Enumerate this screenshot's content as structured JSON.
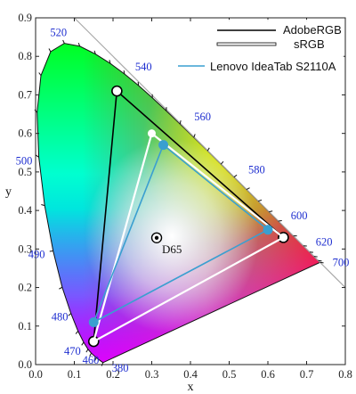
{
  "chart_data": {
    "type": "scatter",
    "subtype": "CIE 1931 chromaticity diagram",
    "xlabel": "x",
    "ylabel": "y",
    "xlim": [
      0.0,
      0.8
    ],
    "ylim": [
      0.0,
      0.9
    ],
    "x_ticks": [
      "0.0",
      "0.1",
      "0.2",
      "0.3",
      "0.4",
      "0.5",
      "0.6",
      "0.7",
      "0.8"
    ],
    "y_ticks": [
      "0.0",
      "0.1",
      "0.2",
      "0.3",
      "0.4",
      "0.5",
      "0.6",
      "0.7",
      "0.8",
      "0.9"
    ],
    "grid": false,
    "legend": {
      "position": "top-right",
      "entries": [
        "AdobeRGB",
        "sRGB",
        "Lenovo IdeaTab S2110A"
      ]
    },
    "spectral_locus": {
      "points": [
        {
          "wl": "380",
          "x": 0.1741,
          "y": 0.005
        },
        {
          "wl": "450",
          "x": 0.1566,
          "y": 0.0177
        },
        {
          "wl": "460",
          "x": 0.144,
          "y": 0.0297
        },
        {
          "wl": "465",
          "x": 0.1355,
          "y": 0.0399
        },
        {
          "wl": "470",
          "x": 0.1241,
          "y": 0.0578
        },
        {
          "wl": "475",
          "x": 0.1096,
          "y": 0.0868
        },
        {
          "wl": "480",
          "x": 0.0913,
          "y": 0.1327
        },
        {
          "wl": "485",
          "x": 0.0687,
          "y": 0.2007
        },
        {
          "wl": "490",
          "x": 0.0454,
          "y": 0.295
        },
        {
          "wl": "495",
          "x": 0.0235,
          "y": 0.4127
        },
        {
          "wl": "500",
          "x": 0.0082,
          "y": 0.5384
        },
        {
          "wl": "505",
          "x": 0.0039,
          "y": 0.6548
        },
        {
          "wl": "510",
          "x": 0.0139,
          "y": 0.7502
        },
        {
          "wl": "515",
          "x": 0.0389,
          "y": 0.812
        },
        {
          "wl": "520",
          "x": 0.0743,
          "y": 0.8338
        },
        {
          "wl": "525",
          "x": 0.1142,
          "y": 0.8262
        },
        {
          "wl": "530",
          "x": 0.1547,
          "y": 0.8059
        },
        {
          "wl": "535",
          "x": 0.1929,
          "y": 0.7816
        },
        {
          "wl": "540",
          "x": 0.2296,
          "y": 0.7543
        },
        {
          "wl": "545",
          "x": 0.2658,
          "y": 0.7243
        },
        {
          "wl": "550",
          "x": 0.3016,
          "y": 0.6923
        },
        {
          "wl": "555",
          "x": 0.3373,
          "y": 0.6589
        },
        {
          "wl": "560",
          "x": 0.3731,
          "y": 0.6245
        },
        {
          "wl": "565",
          "x": 0.4087,
          "y": 0.5896
        },
        {
          "wl": "570",
          "x": 0.4441,
          "y": 0.5547
        },
        {
          "wl": "575",
          "x": 0.4788,
          "y": 0.5202
        },
        {
          "wl": "580",
          "x": 0.5125,
          "y": 0.4866
        },
        {
          "wl": "585",
          "x": 0.5448,
          "y": 0.4544
        },
        {
          "wl": "590",
          "x": 0.5752,
          "y": 0.4242
        },
        {
          "wl": "595",
          "x": 0.6029,
          "y": 0.3965
        },
        {
          "wl": "600",
          "x": 0.627,
          "y": 0.3725
        },
        {
          "wl": "610",
          "x": 0.6658,
          "y": 0.334
        },
        {
          "wl": "620",
          "x": 0.6915,
          "y": 0.3083
        },
        {
          "wl": "630",
          "x": 0.7079,
          "y": 0.292
        },
        {
          "wl": "640",
          "x": 0.719,
          "y": 0.2809
        },
        {
          "wl": "660",
          "x": 0.73,
          "y": 0.27
        },
        {
          "wl": "700",
          "x": 0.7347,
          "y": 0.2653
        }
      ]
    },
    "wavelength_labels": [
      {
        "text": "380",
        "x": 0.1741,
        "y": 0.005
      },
      {
        "text": "460",
        "x": 0.144,
        "y": 0.0297
      },
      {
        "text": "470",
        "x": 0.1241,
        "y": 0.0578
      },
      {
        "text": "480",
        "x": 0.0913,
        "y": 0.1327
      },
      {
        "text": "490",
        "x": 0.0454,
        "y": 0.295
      },
      {
        "text": "500",
        "x": 0.0082,
        "y": 0.5384
      },
      {
        "text": "520",
        "x": 0.0743,
        "y": 0.8338
      },
      {
        "text": "540",
        "x": 0.2296,
        "y": 0.7543
      },
      {
        "text": "560",
        "x": 0.3731,
        "y": 0.6245
      },
      {
        "text": "580",
        "x": 0.5125,
        "y": 0.4866
      },
      {
        "text": "600",
        "x": 0.627,
        "y": 0.3725
      },
      {
        "text": "620",
        "x": 0.6915,
        "y": 0.3083
      },
      {
        "text": "700",
        "x": 0.7347,
        "y": 0.2653
      }
    ],
    "series": [
      {
        "name": "AdobeRGB",
        "color": "#000000",
        "points": [
          {
            "x": 0.64,
            "y": 0.33
          },
          {
            "x": 0.21,
            "y": 0.71
          },
          {
            "x": 0.15,
            "y": 0.06
          }
        ]
      },
      {
        "name": "sRGB",
        "color": "#ffffff",
        "points": [
          {
            "x": 0.64,
            "y": 0.33
          },
          {
            "x": 0.3,
            "y": 0.6
          },
          {
            "x": 0.15,
            "y": 0.06
          }
        ]
      },
      {
        "name": "Lenovo IdeaTab S2110A",
        "color": "#3a9fd0",
        "points": [
          {
            "x": 0.6,
            "y": 0.35
          },
          {
            "x": 0.33,
            "y": 0.57
          },
          {
            "x": 0.15,
            "y": 0.11
          }
        ]
      }
    ],
    "white_point": {
      "label": "D65",
      "x": 0.3127,
      "y": 0.329
    }
  }
}
